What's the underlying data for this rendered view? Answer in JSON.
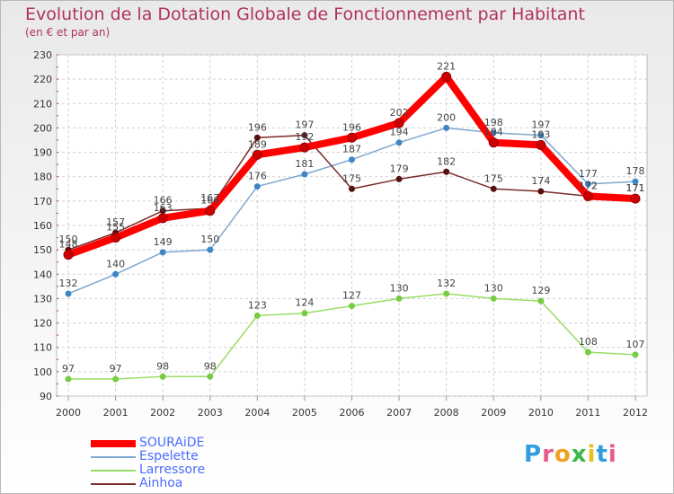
{
  "chart_data": {
    "type": "line",
    "title": "Evolution de la Dotation Globale de Fonctionnement par Habitant",
    "subtitle": "(en € et par an)",
    "xlabel": "",
    "ylabel": "",
    "x": [
      "2000",
      "2001",
      "2002",
      "2003",
      "2004",
      "2005",
      "2006",
      "2007",
      "2008",
      "2009",
      "2010",
      "2011",
      "2012"
    ],
    "ylim": [
      90,
      230
    ],
    "yticks": [
      90,
      100,
      110,
      120,
      130,
      140,
      150,
      160,
      170,
      180,
      190,
      200,
      210,
      220,
      230
    ],
    "grid": true,
    "legend_position": "bottom-left",
    "series": [
      {
        "name": "SOURAiDE",
        "color": "#ff0000",
        "marker_color": "#cc0000",
        "values": [
          148,
          155,
          163,
          166,
          189,
          192,
          196,
          202,
          221,
          194,
          193,
          172,
          171
        ]
      },
      {
        "name": "Espelette",
        "color": "#7fa7d0",
        "marker_color": "#3f86c6",
        "values": [
          132,
          140,
          149,
          150,
          176,
          181,
          187,
          194,
          200,
          198,
          197,
          177,
          178
        ]
      },
      {
        "name": "Larressore",
        "color": "#99dd66",
        "marker_color": "#77cc44",
        "values": [
          97,
          97,
          98,
          98,
          123,
          124,
          127,
          130,
          132,
          130,
          129,
          108,
          107
        ]
      },
      {
        "name": "Ainhoa",
        "color": "#7a2a2a",
        "marker_color": "#551111",
        "values": [
          150,
          157,
          166,
          167,
          196,
          197,
          175,
          179,
          182,
          175,
          174,
          172,
          171
        ]
      }
    ],
    "data_labels": {
      "SOURAiDE": [
        "148",
        "155",
        "163",
        "166",
        "189",
        "192",
        "196",
        "202",
        "221",
        "194",
        "193",
        "172",
        "171"
      ],
      "Espelette": [
        "132",
        "140",
        "149",
        "150",
        "176",
        "181",
        "187",
        "194",
        "200",
        "198",
        "197",
        "177",
        "178"
      ],
      "Larressore": [
        "97",
        "97",
        "98",
        "98",
        "123",
        "124",
        "127",
        "130",
        "132",
        "130",
        "129",
        "108",
        "107"
      ],
      "Ainhoa": [
        "150",
        "157",
        "166",
        "167",
        "196",
        "197",
        "175",
        "179",
        "182",
        "175",
        "174",
        "172",
        "171"
      ]
    }
  }
}
